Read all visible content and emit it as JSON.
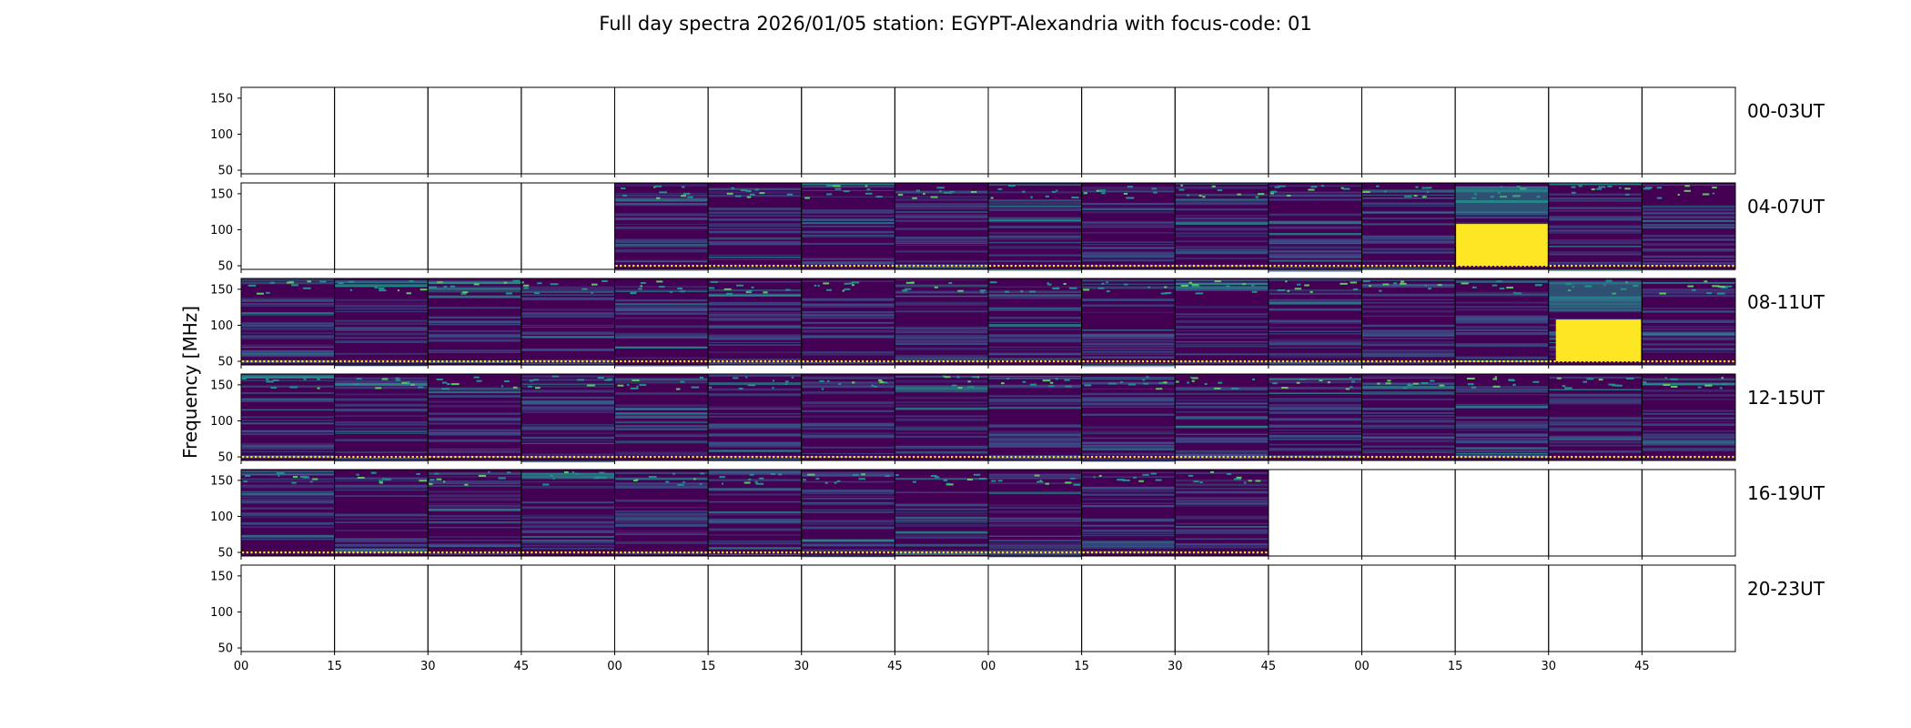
{
  "chart_data": {
    "type": "heatmap",
    "title": "Full day spectra 2026/01/05 station: EGYPT-Alexandria with focus-code: 01",
    "ylabel": "Frequency [MHz]",
    "xlabel": "",
    "ylim": [
      45,
      165
    ],
    "yticks": [
      50,
      100,
      150
    ],
    "xtick_labels": [
      "00",
      "15",
      "30",
      "45",
      "00",
      "15",
      "30",
      "45",
      "00",
      "15",
      "30",
      "45",
      "00",
      "15",
      "30",
      "45"
    ],
    "colormap": [
      "#440154",
      "#3b528b",
      "#21918c",
      "#5ec962",
      "#fde725"
    ],
    "panels_per_row": 16,
    "panel_minutes": 15,
    "rows": [
      {
        "label": "00-03UT",
        "data_panels": []
      },
      {
        "label": "04-07UT",
        "data_panels": [
          4,
          5,
          6,
          7,
          8,
          9,
          10,
          11,
          12,
          13,
          14,
          15
        ],
        "burst_panels": [
          13
        ]
      },
      {
        "label": "08-11UT",
        "data_panels": [
          0,
          1,
          2,
          3,
          4,
          5,
          6,
          7,
          8,
          9,
          10,
          11,
          12,
          13,
          14,
          15
        ],
        "burst_panels": [
          14
        ]
      },
      {
        "label": "12-15UT",
        "data_panels": [
          0,
          1,
          2,
          3,
          4,
          5,
          6,
          7,
          8,
          9,
          10,
          11,
          12,
          13,
          14,
          15
        ],
        "burst_panels": []
      },
      {
        "label": "16-19UT",
        "data_panels": [
          0,
          1,
          2,
          3,
          4,
          5,
          6,
          7,
          8,
          9,
          10
        ],
        "burst_panels": []
      },
      {
        "label": "20-23UT",
        "data_panels": []
      }
    ]
  }
}
